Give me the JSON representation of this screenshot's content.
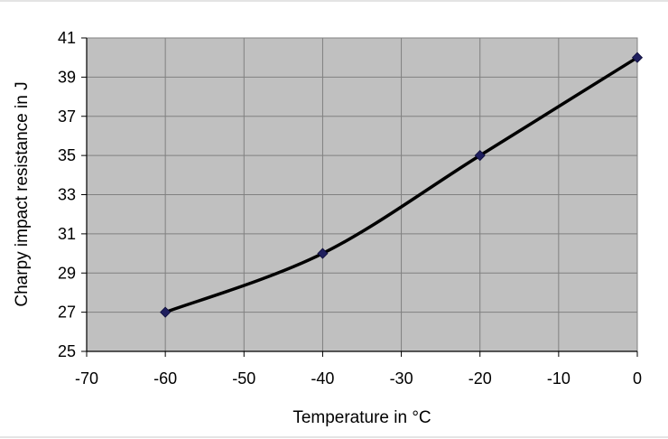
{
  "chart_data": {
    "type": "line",
    "title": "",
    "xlabel": "Temperature in °C",
    "ylabel": "Charpy impact resistance in J",
    "xlim": [
      -70,
      0
    ],
    "ylim": [
      25,
      41
    ],
    "xticks": [
      -70,
      -60,
      -50,
      -40,
      -30,
      -20,
      -10,
      0
    ],
    "yticks": [
      25,
      27,
      29,
      31,
      33,
      35,
      37,
      39,
      41
    ],
    "grid": true,
    "legend": "none",
    "smooth": true,
    "series": [
      {
        "x": [
          -60,
          -40,
          -20,
          0
        ],
        "y": [
          27,
          30,
          35,
          40
        ],
        "line_color": "#000000",
        "marker": "diamond",
        "marker_color": "#1f1f5e"
      }
    ],
    "colors": {
      "plot_background": "#c0c0c0",
      "gridline": "#808080",
      "frame_line": "#c8c8c8"
    }
  }
}
